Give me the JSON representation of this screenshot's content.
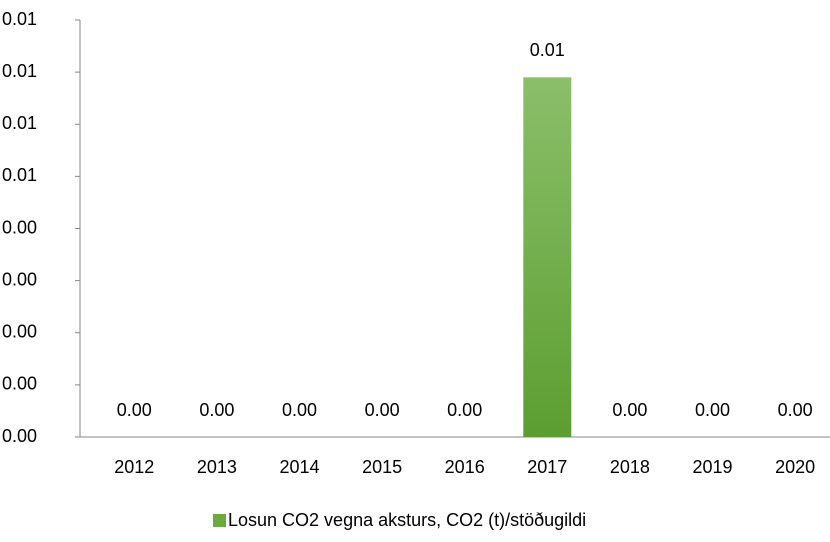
{
  "chart_data": {
    "type": "bar",
    "categories": [
      "2012",
      "2013",
      "2014",
      "2015",
      "2016",
      "2017",
      "2018",
      "2019",
      "2020"
    ],
    "series": [
      {
        "name": "Losun CO2 vegna aksturs, CO2 (t)/stöðugildi",
        "color": "#6aaa3f",
        "values": [
          0,
          0,
          0,
          0,
          0,
          0.0069,
          0,
          0,
          0
        ],
        "value_labels": [
          "0.00",
          "0.00",
          "0.00",
          "0.00",
          "0.00",
          "0.01",
          "0.00",
          "0.00",
          "0.00"
        ]
      }
    ],
    "ylim": [
      0,
      0.008
    ],
    "yticks": [
      {
        "value": 0,
        "label": "0.00"
      },
      {
        "value": 0.001,
        "label": "0.00"
      },
      {
        "value": 0.002,
        "label": "0.00"
      },
      {
        "value": 0.003,
        "label": "0.00"
      },
      {
        "value": 0.004,
        "label": "0.00"
      },
      {
        "value": 0.005,
        "label": "0.01"
      },
      {
        "value": 0.006,
        "label": "0.01"
      },
      {
        "value": 0.007,
        "label": "0.01"
      },
      {
        "value": 0.008,
        "label": "0.01"
      }
    ],
    "grid": false,
    "legend": "bottom"
  }
}
